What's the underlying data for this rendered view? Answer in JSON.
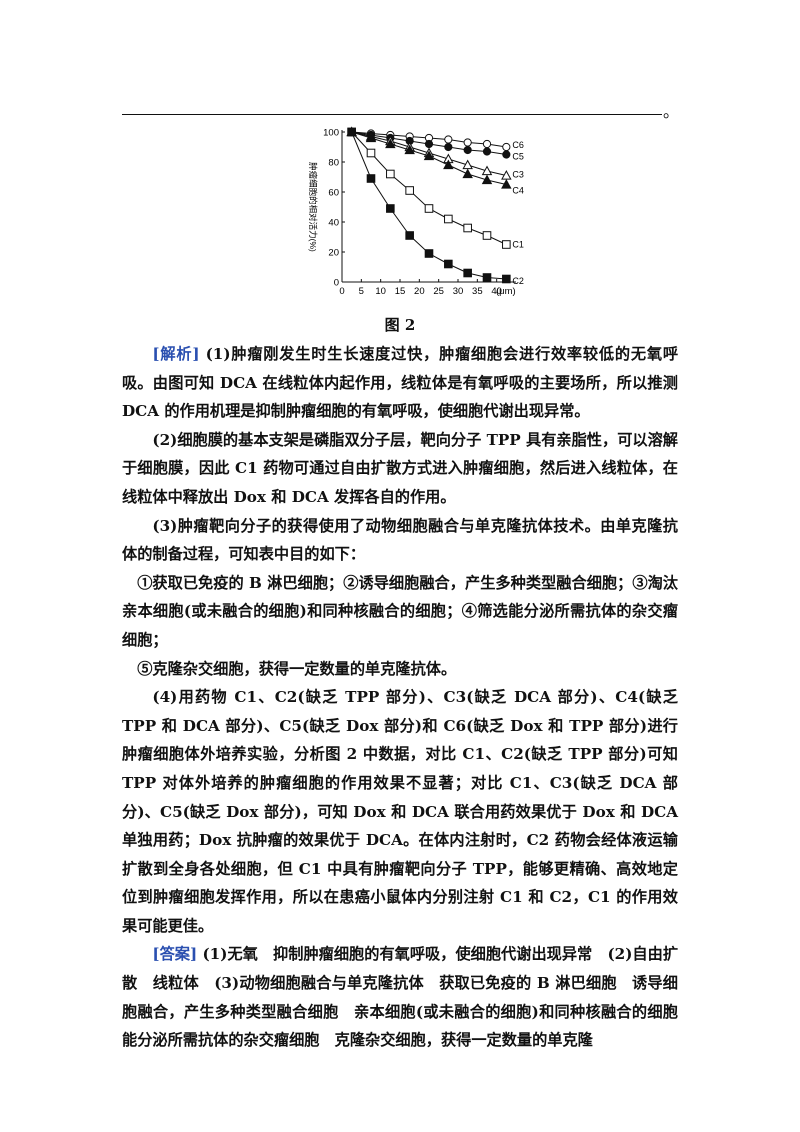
{
  "header": {
    "end_mark": "。"
  },
  "figure": {
    "caption": "图 2"
  },
  "chart_data": {
    "type": "line",
    "ylabel": "肿瘤细胞的相对活力(%)",
    "xunit": "(μm)",
    "xticks": [
      "0",
      "5",
      "10",
      "15",
      "20",
      "25",
      "30",
      "35",
      "40"
    ],
    "yticks": [
      "0",
      "20",
      "40",
      "60",
      "80",
      "100"
    ],
    "xlim": [
      0,
      45
    ],
    "ylim": [
      0,
      100
    ],
    "series": [
      {
        "name": "C6",
        "marker": "open-circle",
        "x": [
          2.5,
          7.5,
          12.5,
          17.5,
          22.5,
          27.5,
          32.5,
          37.5,
          42.5
        ],
        "y": [
          100,
          99,
          98,
          97,
          96,
          95,
          93,
          92,
          90
        ]
      },
      {
        "name": "C5",
        "marker": "filled-circle",
        "x": [
          2.5,
          7.5,
          12.5,
          17.5,
          22.5,
          27.5,
          32.5,
          37.5,
          42.5
        ],
        "y": [
          100,
          98,
          96,
          94,
          92,
          90,
          88,
          87,
          85
        ]
      },
      {
        "name": "C3",
        "marker": "open-triangle",
        "x": [
          2.5,
          7.5,
          12.5,
          17.5,
          22.5,
          27.5,
          32.5,
          37.5,
          42.5
        ],
        "y": [
          100,
          97,
          94,
          90,
          86,
          82,
          78,
          74,
          71
        ]
      },
      {
        "name": "C4",
        "marker": "filled-triangle",
        "x": [
          2.5,
          7.5,
          12.5,
          17.5,
          22.5,
          27.5,
          32.5,
          37.5,
          42.5
        ],
        "y": [
          100,
          96,
          92,
          88,
          84,
          78,
          72,
          68,
          65
        ]
      },
      {
        "name": "C1",
        "marker": "open-square",
        "x": [
          2.5,
          7.5,
          12.5,
          17.5,
          22.5,
          27.5,
          32.5,
          37.5,
          42.5
        ],
        "y": [
          100,
          86,
          72,
          61,
          49,
          42,
          36,
          31,
          25
        ]
      },
      {
        "name": "C2",
        "marker": "filled-square",
        "x": [
          2.5,
          7.5,
          12.5,
          17.5,
          22.5,
          27.5,
          32.5,
          37.5,
          42.5
        ],
        "y": [
          100,
          69,
          49,
          31,
          19,
          12,
          6,
          3,
          2
        ]
      }
    ]
  },
  "analysis": {
    "tag": "[解析]",
    "p1": " (1)肿瘤刚发生时生长速度过快，肿瘤细胞会进行效率较低的无氧呼吸。由图可知 DCA 在线粒体内起作用，线粒体是有氧呼吸的主要场所，所以推测 DCA 的作用机理是抑制肿瘤细胞的有氧呼吸，使细胞代谢出现异常。",
    "p2": "(2)细胞膜的基本支架是磷脂双分子层，靶向分子 TPP 具有亲脂性，可以溶解于细胞膜，因此 C1 药物可通过自由扩散方式进入肿瘤细胞，然后进入线粒体，在线粒体中释放出 Dox 和 DCA 发挥各自的作用。",
    "p3": "(3)肿瘤靶向分子的获得使用了动物细胞融合与单克隆抗体技术。由单克隆抗体的制备过程，可知表中目的如下：",
    "p4": "①获取已免疫的 B 淋巴细胞；②诱导细胞融合，产生多种类型融合细胞；③淘汰亲本细胞(或未融合的细胞)和同种核融合的细胞；④筛选能分泌所需抗体的杂交瘤细胞；",
    "p5": "⑤克隆杂交细胞，获得一定数量的单克隆抗体。",
    "p6": "(4)用药物 C1、C2(缺乏 TPP 部分)、C3(缺乏 DCA 部分)、C4(缺乏 TPP 和 DCA 部分)、C5(缺乏 Dox 部分)和 C6(缺乏 Dox 和 TPP 部分)进行肿瘤细胞体外培养实验，分析图 2 中数据，对比 C1、C2(缺乏 TPP 部分)可知 TPP 对体外培养的肿瘤细胞的作用效果不显著；对比 C1、C3(缺乏 DCA 部分)、C5(缺乏 Dox 部分)，可知 Dox 和 DCA 联合用药效果优于 Dox 和 DCA 单独用药；Dox 抗肿瘤的效果优于 DCA。在体内注射时，C2 药物会经体液运输扩散到全身各处细胞，但 C1 中具有肿瘤靶向分子 TPP，能够更精确、高效地定位到肿瘤细胞发挥作用，所以在患癌小鼠体内分别注射 C1 和 C2，C1 的作用效果可能更佳。"
  },
  "answer": {
    "tag": "[答案]",
    "text": " (1)无氧　抑制肿瘤细胞的有氧呼吸，使细胞代谢出现异常　(2)自由扩散　线粒体　(3)动物细胞融合与单克隆抗体　获取已免疫的 B 淋巴细胞　诱导细胞融合，产生多种类型融合细胞　亲本细胞(或未融合的细胞)和同种核融合的细胞　能分泌所需抗体的杂交瘤细胞　克隆杂交细胞，获得一定数量的单克隆"
  }
}
